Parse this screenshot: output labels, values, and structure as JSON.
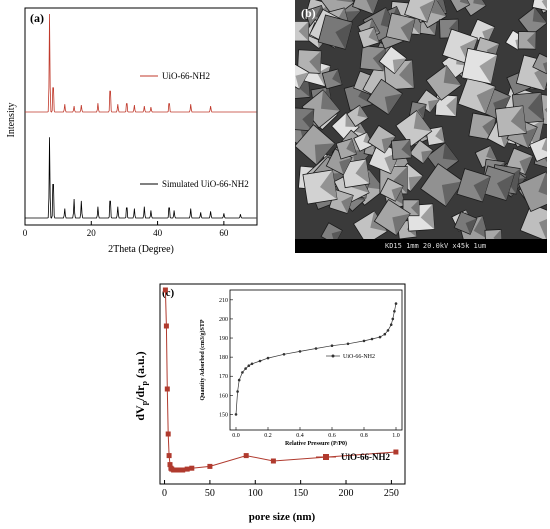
{
  "panel_a": {
    "label": "(a)",
    "ylabel": "Intensity",
    "xlabel": "2Theta (Degree)",
    "xticks": [
      "0",
      "20",
      "40",
      "60"
    ],
    "legend_top": "UiO-66-NH2",
    "legend_bottom": "Simulated UiO-66-NH2",
    "color_top": "#c0392b",
    "color_bottom": "#000000"
  },
  "panel_b": {
    "label": "(b)",
    "scale_text": "KD15  1mm  20.0kV  x45k      1um"
  },
  "panel_c": {
    "label": "(c)",
    "xlabel": "pore size (nm)",
    "xticks": [
      "0",
      "50",
      "100",
      "150",
      "200",
      "250"
    ],
    "legend": "UiO-66-NH2",
    "color": "#b03a2e",
    "inset_ylabel": "Quantity Adsorbed (cm3/g)STP",
    "inset_xlabel": "Relative Pressure (P/P0)",
    "inset_xticks": [
      "0.0",
      "0.2",
      "0.4",
      "0.6",
      "0.8",
      "1.0"
    ],
    "inset_yticks": [
      "150",
      "160",
      "170",
      "180",
      "190",
      "200",
      "210"
    ],
    "inset_legend": "UiO-66-NH2"
  },
  "chart_data": [
    {
      "type": "line",
      "title": "",
      "xlabel": "2Theta (Degree)",
      "ylabel": "Intensity",
      "xlim": [
        0,
        70
      ],
      "series": [
        {
          "name": "UiO-66-NH2",
          "peaks": [
            [
              7.4,
              1.0
            ],
            [
              8.5,
              0.35
            ],
            [
              12.0,
              0.08
            ],
            [
              14.8,
              0.06
            ],
            [
              17.0,
              0.07
            ],
            [
              22.0,
              0.09
            ],
            [
              25.7,
              0.3
            ],
            [
              28.0,
              0.08
            ],
            [
              30.7,
              0.12
            ],
            [
              33.0,
              0.07
            ],
            [
              36.0,
              0.06
            ],
            [
              38.0,
              0.05
            ],
            [
              43.5,
              0.12
            ],
            [
              50.0,
              0.08
            ],
            [
              56.0,
              0.06
            ]
          ]
        },
        {
          "name": "Simulated UiO-66-NH2",
          "peaks": [
            [
              7.4,
              0.85
            ],
            [
              8.5,
              0.5
            ],
            [
              12.0,
              0.1
            ],
            [
              14.8,
              0.2
            ],
            [
              17.0,
              0.18
            ],
            [
              22.0,
              0.12
            ],
            [
              25.7,
              0.25
            ],
            [
              28.0,
              0.12
            ],
            [
              30.7,
              0.15
            ],
            [
              33.0,
              0.1
            ],
            [
              36.0,
              0.12
            ],
            [
              38.0,
              0.08
            ],
            [
              43.5,
              0.15
            ],
            [
              45.0,
              0.08
            ],
            [
              50.0,
              0.1
            ],
            [
              53.0,
              0.06
            ],
            [
              56.0,
              0.07
            ],
            [
              60.0,
              0.05
            ],
            [
              65.0,
              0.04
            ]
          ]
        }
      ]
    },
    {
      "type": "line",
      "title": "",
      "xlabel": "pore size (nm)",
      "ylabel": "dVp/drp (a.u.)",
      "xlim": [
        0,
        260
      ],
      "series": [
        {
          "name": "UiO-66-NH2",
          "x": [
            1,
            2,
            3,
            4,
            5,
            6,
            7,
            8,
            10,
            12,
            15,
            20,
            25,
            30,
            50,
            90,
            120,
            255
          ],
          "y": [
            1.0,
            0.8,
            0.45,
            0.2,
            0.08,
            0.03,
            0.01,
            0.005,
            0.0,
            0.0,
            0.0,
            0.0,
            0.005,
            0.01,
            0.02,
            0.08,
            0.05,
            0.1
          ]
        }
      ]
    },
    {
      "type": "line",
      "title": "",
      "xlabel": "Relative Pressure (P/P0)",
      "ylabel": "Quantity Adsorbed (cm3/g)STP",
      "xlim": [
        0,
        1.0
      ],
      "ylim": [
        145,
        212
      ],
      "series": [
        {
          "name": "UiO-66-NH2",
          "x": [
            0.0,
            0.01,
            0.02,
            0.04,
            0.06,
            0.08,
            0.1,
            0.15,
            0.2,
            0.3,
            0.4,
            0.5,
            0.6,
            0.7,
            0.8,
            0.85,
            0.9,
            0.93,
            0.95,
            0.97,
            0.98,
            0.99,
            1.0
          ],
          "y": [
            150,
            162,
            168,
            172,
            174,
            175.5,
            176.5,
            178,
            179.5,
            181.5,
            183,
            184.5,
            186,
            187,
            188.5,
            189.5,
            190.5,
            192,
            194,
            197,
            200,
            204,
            208
          ]
        }
      ]
    }
  ]
}
